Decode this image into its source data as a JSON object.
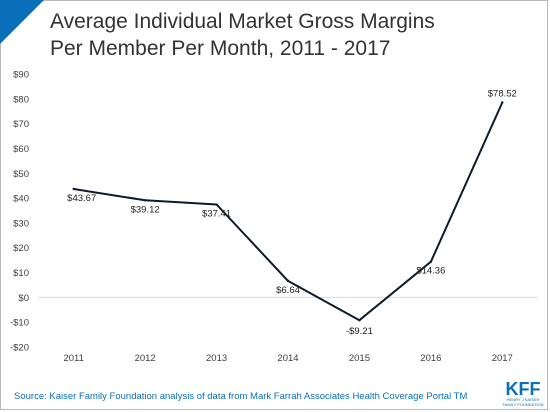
{
  "brand": {
    "accent": "#0a6fb8"
  },
  "title": {
    "line1": "Average Individual Market Gross Margins",
    "line2": "Per Member Per Month, 2011 - 2017"
  },
  "source": "Source: Kaiser Family Foundation analysis of data from Mark Farrah Associates Health Coverage Portal TM",
  "logo": {
    "mark": "KFF",
    "sub_line1": "Henry J Kaiser",
    "sub_line2": "Family Foundation"
  },
  "chart_data": {
    "type": "line",
    "title": "Average Individual Market Gross Margins Per Member Per Month, 2011 - 2017",
    "xlabel": "",
    "ylabel": "",
    "x": [
      "2011",
      "2012",
      "2013",
      "2014",
      "2015",
      "2016",
      "2017"
    ],
    "series": [
      {
        "values": [
          43.67,
          39.12,
          37.41,
          6.64,
          -9.21,
          14.36,
          78.52
        ],
        "data_labels": [
          "$43.67",
          "$39.12",
          "$37.41",
          "$6.64",
          "-$9.21",
          "$14.36",
          "$78.52"
        ],
        "color": "#0d1b2a"
      }
    ],
    "ylim": [
      -20,
      90
    ],
    "yticks": [
      -20,
      -10,
      0,
      10,
      20,
      30,
      40,
      50,
      60,
      70,
      80,
      90
    ],
    "ytick_labels": [
      "-$20",
      "-$10",
      "$0",
      "$10",
      "$20",
      "$30",
      "$40",
      "$50",
      "$60",
      "$70",
      "$80",
      "$90"
    ],
    "grid": false,
    "zero_line": true,
    "legend": "none"
  }
}
